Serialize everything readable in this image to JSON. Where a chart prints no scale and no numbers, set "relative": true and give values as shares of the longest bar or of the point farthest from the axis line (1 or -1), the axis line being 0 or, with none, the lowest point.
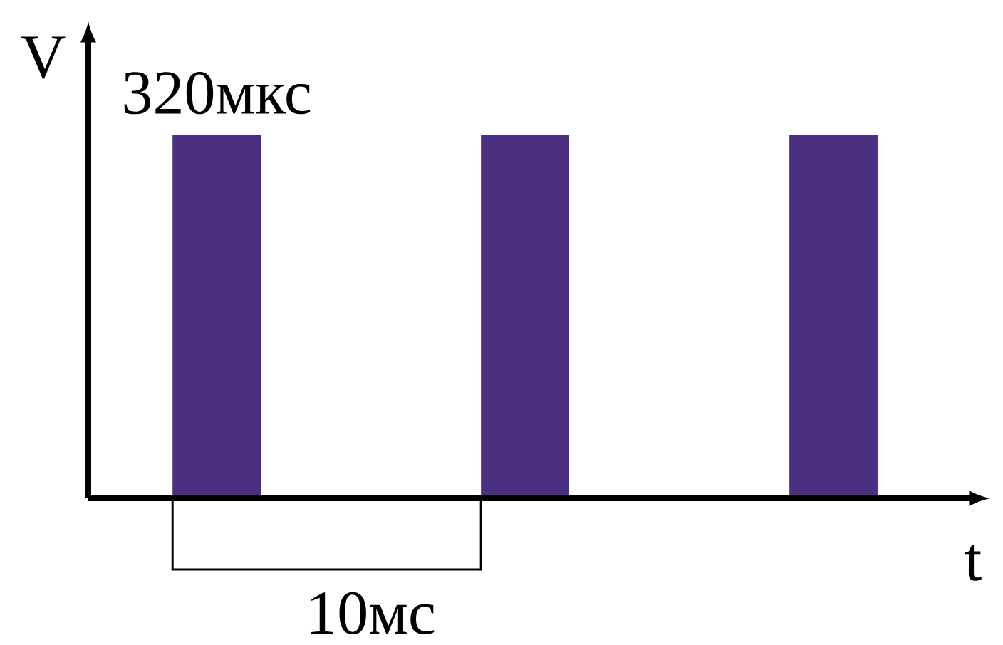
{
  "chart_data": {
    "type": "bar",
    "relative": true,
    "categories": [
      null,
      null,
      null
    ],
    "values": [
      1,
      1,
      1
    ],
    "color": "#4b2f80",
    "xlabel": "t",
    "ylabel": "V",
    "annotations": [
      "320мкс",
      "10мс"
    ]
  }
}
